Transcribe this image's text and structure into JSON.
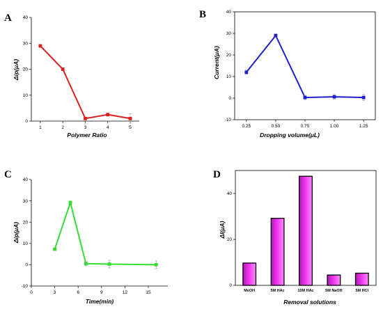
{
  "chart_data": [
    {
      "id": "A",
      "panel_label": "A",
      "type": "line",
      "xlabel": "Polymer Ratio",
      "ylabel": "Δip(μA)",
      "xlim": [
        0.6,
        5.4
      ],
      "ylim": [
        0,
        40
      ],
      "x_ticks": [
        1,
        2,
        3,
        4,
        5
      ],
      "y_ticks": [
        0,
        10,
        20,
        30,
        40
      ],
      "color": "#dd1f1f",
      "series": [
        {
          "x": [
            1,
            2,
            3,
            4,
            5
          ],
          "y": [
            29,
            20,
            1,
            2.5,
            1
          ],
          "err": [
            0.6,
            0.5,
            0.5,
            0.6,
            1.8
          ]
        }
      ]
    },
    {
      "id": "B",
      "panel_label": "B",
      "type": "line",
      "xlabel": "Dropping volume(μL)",
      "ylabel": "Current(μA)",
      "xlim": [
        0.15,
        1.35
      ],
      "ylim": [
        -10,
        40
      ],
      "x_ticks": [
        "0.25",
        "0.50",
        "0.75",
        "1.00",
        "1.25"
      ],
      "y_ticks": [
        -10,
        0,
        10,
        20,
        30,
        40
      ],
      "color": "#1f1fcc",
      "series": [
        {
          "x": [
            0.25,
            0.5,
            0.75,
            1.0,
            1.25
          ],
          "y": [
            12,
            29,
            0.3,
            0.6,
            0.3
          ],
          "err": [
            1.0,
            0.8,
            1.0,
            1.0,
            1.5
          ]
        }
      ]
    },
    {
      "id": "C",
      "panel_label": "C",
      "type": "line",
      "xlabel": "Time(min)",
      "ylabel": "Δip(μA)",
      "xlim": [
        0,
        17.5
      ],
      "ylim": [
        -10,
        40
      ],
      "x_ticks": [
        0,
        3,
        6,
        9,
        12,
        15
      ],
      "y_ticks": [
        -10,
        0,
        10,
        20,
        30,
        40
      ],
      "color": "#33dd33",
      "series": [
        {
          "x": [
            3,
            5,
            7,
            10,
            16
          ],
          "y": [
            7.3,
            29.2,
            0.5,
            0.3,
            0
          ],
          "err": [
            0.6,
            0.6,
            1.0,
            1.8,
            1.8
          ]
        }
      ]
    },
    {
      "id": "D",
      "panel_label": "D",
      "type": "bar",
      "xlabel": "Removal solutions",
      "ylabel": "ΔI(μA)",
      "ylim": [
        0,
        50
      ],
      "y_ticks": [
        0,
        20,
        40
      ],
      "color": "#ee33ee",
      "categories": [
        "MeOH",
        "5M HAc",
        "10M HAc",
        "5M NaOH",
        "5M HCl"
      ],
      "values": [
        9.7,
        29.2,
        47.5,
        4.5,
        5.3
      ]
    }
  ]
}
